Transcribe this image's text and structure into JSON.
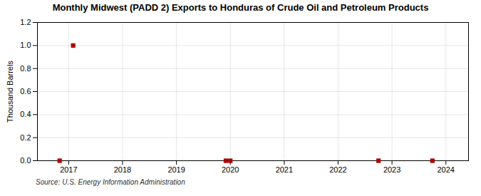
{
  "chart_data": {
    "type": "scatter",
    "title": "Monthly Midwest (PADD 2) Exports to Honduras of Crude Oil and Petroleum Products",
    "ylabel": "Thousand Barrels",
    "source": "Source: U.S. Energy Information Administration",
    "x": [
      2016.833,
      2017.083,
      2019.917,
      2020.0,
      2022.75,
      2023.75
    ],
    "values": [
      0.0,
      1.0,
      0.0,
      0.0,
      0.0,
      0.0
    ],
    "color": "#aa0000",
    "marker": "square",
    "xlim": [
      2016.42,
      2024.42
    ],
    "xticks": [
      2017,
      2018,
      2019,
      2020,
      2021,
      2022,
      2023,
      2024
    ],
    "ylim": [
      0.0,
      1.2
    ],
    "yticks": [
      {
        "value": 0.0,
        "label": "0.0"
      },
      0.2,
      0.4,
      0.6,
      0.8,
      {
        "value": 1.0,
        "label": "1.0"
      },
      1.2
    ],
    "grid": true
  }
}
